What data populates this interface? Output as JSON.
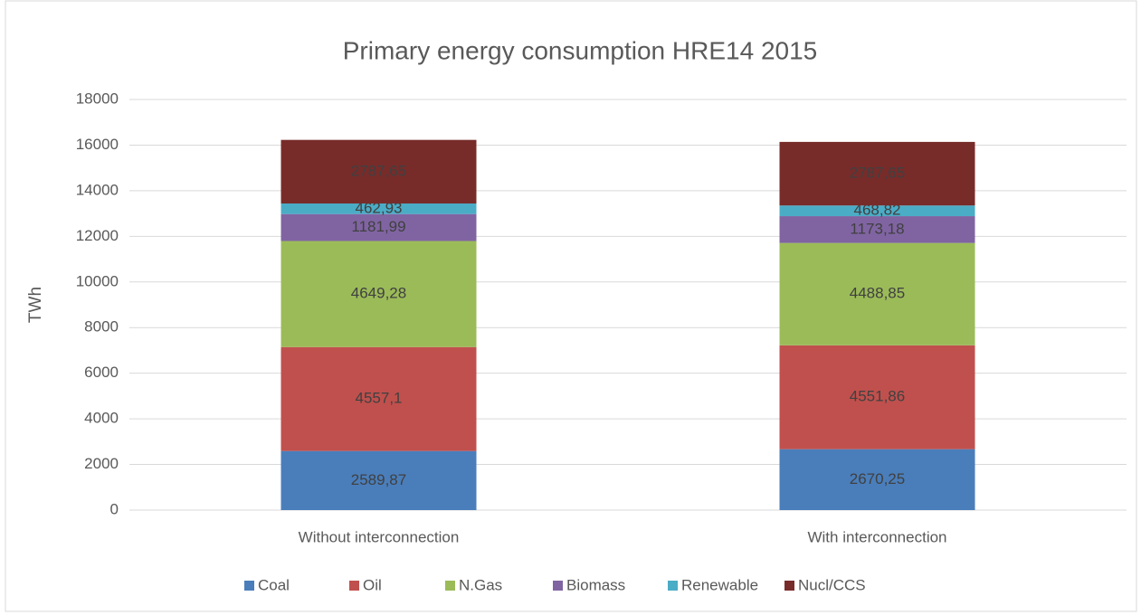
{
  "chart_data": {
    "type": "stacked_bar",
    "title": "Primary energy consumption HRE14 2015",
    "y_label": "TWh",
    "categories": [
      "Without interconnection",
      "With interconnection"
    ],
    "series": [
      {
        "name": "Coal",
        "color": "#4a7ebb",
        "values": [
          2589.87,
          2670.25
        ],
        "value_labels": [
          "2589,87",
          "2670,25"
        ]
      },
      {
        "name": "Oil",
        "color": "#c0504d",
        "values": [
          4557.1,
          4551.86
        ],
        "value_labels": [
          "4557,1",
          "4551,86"
        ]
      },
      {
        "name": "N.Gas",
        "color": "#9bbb59",
        "values": [
          4649.28,
          4488.85
        ],
        "value_labels": [
          "4649,28",
          "4488,85"
        ]
      },
      {
        "name": "Biomass",
        "color": "#8064a2",
        "values": [
          1181.99,
          1173.18
        ],
        "value_labels": [
          "1181,99",
          "1173,18"
        ]
      },
      {
        "name": "Renewable",
        "color": "#4bacc6",
        "values": [
          462.93,
          468.82
        ],
        "value_labels": [
          "462,93",
          "468,82"
        ]
      },
      {
        "name": "Nucl/CCS",
        "color": "#772c2a",
        "values": [
          2787.65,
          2787.65
        ],
        "value_labels": [
          "2787,65",
          "2787,65"
        ]
      }
    ],
    "ylim": [
      0,
      18000
    ],
    "yticks": [
      0,
      2000,
      4000,
      6000,
      8000,
      10000,
      12000,
      14000,
      16000,
      18000
    ],
    "grid": true,
    "legend": "bottom"
  }
}
